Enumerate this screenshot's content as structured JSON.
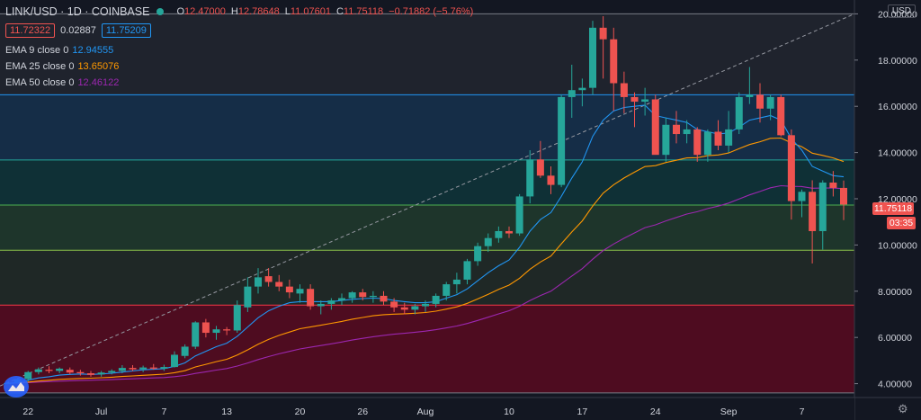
{
  "header": {
    "symbol": "LINK/USD · 1D · COINBASE",
    "ohlc": [
      {
        "k": "O",
        "v": "12.47000"
      },
      {
        "k": "H",
        "v": "12.78648"
      },
      {
        "k": "L",
        "v": "11.07601"
      },
      {
        "k": "C",
        "v": "11.75118"
      },
      {
        "k": "",
        "v": "−0.71882 (−5.76%)"
      }
    ],
    "sell_price": "11.72322",
    "spread": "0.02887",
    "buy_price": "11.75209"
  },
  "indicators": [
    {
      "name": "EMA 9 close 0",
      "value": "12.94555",
      "color": "#2196f3"
    },
    {
      "name": "EMA 25 close 0",
      "value": "13.65076",
      "color": "#ff9800"
    },
    {
      "name": "EMA 50 close 0",
      "value": "12.46122",
      "color": "#9c27b0"
    }
  ],
  "currency_button": "USD",
  "last_price_tag": "11.75118",
  "countdown_tag": "03:35",
  "chart_data": {
    "type": "candlestick",
    "y_axis": {
      "ticks": [
        "4.00000",
        "6.00000",
        "8.00000",
        "10.00000",
        "12.00000",
        "14.00000",
        "16.00000",
        "18.00000",
        "20.00000"
      ],
      "ylim": [
        3.4,
        20.6
      ]
    },
    "x_axis": {
      "ticks": [
        "22",
        "Jul",
        "7",
        "13",
        "20",
        "26",
        "Aug",
        "10",
        "17",
        "24",
        "Sep",
        "7"
      ]
    },
    "fib_levels": [
      20.0,
      16.5,
      13.68,
      11.73,
      9.77,
      7.4,
      3.6
    ],
    "candles": [
      [
        4.02,
        4.05,
        3.98,
        4.02
      ],
      [
        4.05,
        4.25,
        4.0,
        4.2
      ],
      [
        4.2,
        4.55,
        4.1,
        4.5
      ],
      [
        4.5,
        4.7,
        4.4,
        4.62
      ],
      [
        4.6,
        4.75,
        4.45,
        4.55
      ],
      [
        4.55,
        4.7,
        4.45,
        4.65
      ],
      [
        4.6,
        4.7,
        4.4,
        4.48
      ],
      [
        4.5,
        4.6,
        4.35,
        4.45
      ],
      [
        4.45,
        4.55,
        4.3,
        4.38
      ],
      [
        4.4,
        4.55,
        4.3,
        4.48
      ],
      [
        4.48,
        4.62,
        4.4,
        4.55
      ],
      [
        4.55,
        4.8,
        4.45,
        4.68
      ],
      [
        4.68,
        4.8,
        4.55,
        4.62
      ],
      [
        4.62,
        4.78,
        4.5,
        4.7
      ],
      [
        4.7,
        4.85,
        4.6,
        4.65
      ],
      [
        4.65,
        4.82,
        4.55,
        4.72
      ],
      [
        4.72,
        5.4,
        4.7,
        5.25
      ],
      [
        5.2,
        5.7,
        5.1,
        5.6
      ],
      [
        5.6,
        6.7,
        5.5,
        6.65
      ],
      [
        6.65,
        6.8,
        6.0,
        6.2
      ],
      [
        6.2,
        6.5,
        5.9,
        6.35
      ],
      [
        6.35,
        6.45,
        6.1,
        6.3
      ],
      [
        6.3,
        7.6,
        6.2,
        7.4
      ],
      [
        7.3,
        8.6,
        7.1,
        8.2
      ],
      [
        8.2,
        9.0,
        7.9,
        8.6
      ],
      [
        8.65,
        9.0,
        8.2,
        8.4
      ],
      [
        8.4,
        8.7,
        8.0,
        8.2
      ],
      [
        8.2,
        8.5,
        7.7,
        7.95
      ],
      [
        7.9,
        8.3,
        7.5,
        8.1
      ],
      [
        8.1,
        8.3,
        7.2,
        7.35
      ],
      [
        7.35,
        7.6,
        7.0,
        7.45
      ],
      [
        7.45,
        7.7,
        7.2,
        7.6
      ],
      [
        7.6,
        7.9,
        7.4,
        7.7
      ],
      [
        7.7,
        8.0,
        7.5,
        7.95
      ],
      [
        7.95,
        8.1,
        7.6,
        7.75
      ],
      [
        7.75,
        8.0,
        7.5,
        7.8
      ],
      [
        7.8,
        8.0,
        7.4,
        7.55
      ],
      [
        7.55,
        7.7,
        7.1,
        7.3
      ],
      [
        7.3,
        7.5,
        7.0,
        7.2
      ],
      [
        7.2,
        7.45,
        7.0,
        7.35
      ],
      [
        7.35,
        7.6,
        7.1,
        7.45
      ],
      [
        7.45,
        7.9,
        7.3,
        7.8
      ],
      [
        7.8,
        8.4,
        7.6,
        8.3
      ],
      [
        8.3,
        8.8,
        7.9,
        8.5
      ],
      [
        8.5,
        9.4,
        8.3,
        9.3
      ],
      [
        9.3,
        10.1,
        9.1,
        9.95
      ],
      [
        9.95,
        10.5,
        9.7,
        10.3
      ],
      [
        10.3,
        10.8,
        10.1,
        10.6
      ],
      [
        10.6,
        10.8,
        10.3,
        10.5
      ],
      [
        10.5,
        12.2,
        10.4,
        12.1
      ],
      [
        12.1,
        14.1,
        11.8,
        13.7
      ],
      [
        13.7,
        14.5,
        12.9,
        13.0
      ],
      [
        13.0,
        13.4,
        12.2,
        12.6
      ],
      [
        12.6,
        16.5,
        12.5,
        16.4
      ],
      [
        16.4,
        17.8,
        15.5,
        16.7
      ],
      [
        16.7,
        17.2,
        16.0,
        16.8
      ],
      [
        16.8,
        19.7,
        16.5,
        19.4
      ],
      [
        19.4,
        19.9,
        17.2,
        18.9
      ],
      [
        18.9,
        19.4,
        15.8,
        17.0
      ],
      [
        17.0,
        17.5,
        15.7,
        16.4
      ],
      [
        16.4,
        16.6,
        15.1,
        16.2
      ],
      [
        16.2,
        16.8,
        15.6,
        16.3
      ],
      [
        16.3,
        16.5,
        14.0,
        13.9
      ],
      [
        13.9,
        15.5,
        13.6,
        15.2
      ],
      [
        15.2,
        15.8,
        14.4,
        14.8
      ],
      [
        14.8,
        15.4,
        14.4,
        15.0
      ],
      [
        15.0,
        15.1,
        13.6,
        13.9
      ],
      [
        13.9,
        15.0,
        13.6,
        14.9
      ],
      [
        14.9,
        15.4,
        14.1,
        14.3
      ],
      [
        14.3,
        15.8,
        14.0,
        15.0
      ],
      [
        15.0,
        16.6,
        14.8,
        16.4
      ],
      [
        16.4,
        17.7,
        16.1,
        16.5
      ],
      [
        16.5,
        17.0,
        15.3,
        15.9
      ],
      [
        15.9,
        16.5,
        15.4,
        16.4
      ],
      [
        16.4,
        16.5,
        14.7,
        14.75
      ],
      [
        14.75,
        15.0,
        11.1,
        11.9
      ],
      [
        11.9,
        12.4,
        11.2,
        12.3
      ],
      [
        12.3,
        12.8,
        9.2,
        10.6
      ],
      [
        10.6,
        12.8,
        9.8,
        12.7
      ],
      [
        12.7,
        13.2,
        12.1,
        12.47
      ],
      [
        12.47,
        12.78648,
        11.07601,
        11.75118
      ]
    ],
    "ema9": [
      4.0,
      4.05,
      4.15,
      4.25,
      4.3,
      4.37,
      4.4,
      4.42,
      4.4,
      4.42,
      4.45,
      4.5,
      4.55,
      4.6,
      4.62,
      4.65,
      4.75,
      4.9,
      5.2,
      5.4,
      5.6,
      5.75,
      6.05,
      6.45,
      6.85,
      7.15,
      7.35,
      7.5,
      7.55,
      7.55,
      7.55,
      7.55,
      7.6,
      7.65,
      7.68,
      7.7,
      7.68,
      7.6,
      7.55,
      7.5,
      7.5,
      7.55,
      7.7,
      7.85,
      8.1,
      8.45,
      8.8,
      9.1,
      9.35,
      9.9,
      10.6,
      11.1,
      11.4,
      12.1,
      12.9,
      13.6,
      14.7,
      15.4,
      15.8,
      15.95,
      16.0,
      16.05,
      15.6,
      15.5,
      15.4,
      15.3,
      15.0,
      14.9,
      14.8,
      14.85,
      15.1,
      15.4,
      15.5,
      15.6,
      15.4,
      14.6,
      14.1,
      13.4,
      13.2,
      13.0,
      12.95
    ]
  }
}
